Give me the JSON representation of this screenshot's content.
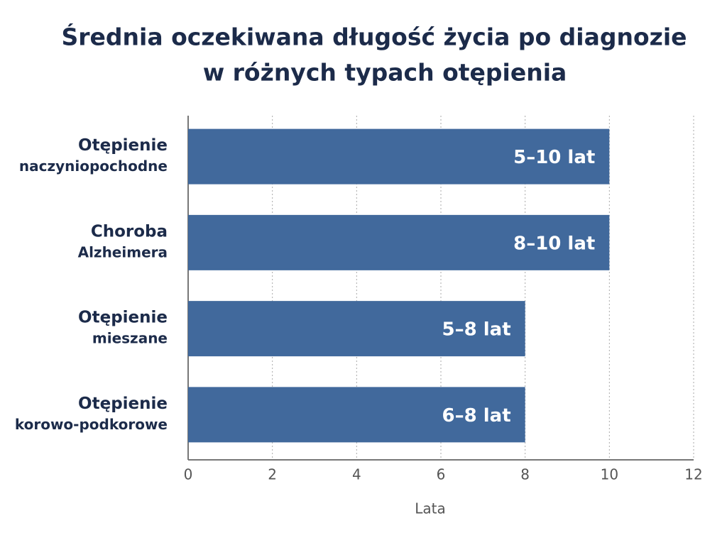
{
  "chart_data": {
    "type": "bar",
    "orientation": "horizontal",
    "title": [
      "Średnia oczekiwana długość życia po diagnozie",
      "w różnych typach otępienia"
    ],
    "categories": [
      [
        "Otępienie",
        "naczyniopochodne"
      ],
      [
        "Choroba",
        "Alzheimera"
      ],
      [
        "Otępienie",
        "mieszane"
      ],
      [
        "Otępienie",
        "korowo-podkorowe"
      ]
    ],
    "values": [
      10,
      10,
      8,
      8
    ],
    "value_labels": [
      "5–10 lat",
      "8–10 lat",
      "5–8 lat",
      "6–8 lat"
    ],
    "color": "#41699c",
    "xlabel": "Lata",
    "xlim": [
      0,
      12
    ],
    "xticks": [
      0,
      2,
      4,
      6,
      8,
      10,
      12
    ],
    "grid": true
  }
}
